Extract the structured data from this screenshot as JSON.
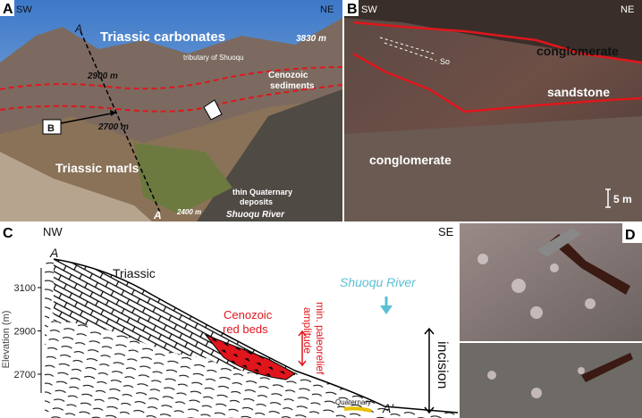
{
  "panel_a": {
    "label": "A",
    "left": "SW",
    "right": "NE",
    "line_top": "A",
    "line_bottom": "A",
    "title": "Triassic carbonates",
    "peak": "3830 m",
    "tributary": "tributary of Shuoqu",
    "cenozoic": [
      "Cenozoic",
      "sediments"
    ],
    "upper_level": "2900 m",
    "lower_level": "2700 m",
    "box": "B",
    "marls": "Triassic marls",
    "quaternary": [
      "thin Quaternary",
      "deposits"
    ],
    "river_level": "2400 m",
    "river": "Shuoqu River"
  },
  "panel_b": {
    "label": "B",
    "left": "SW",
    "right": "NE",
    "bedding": "So",
    "upper": "conglomerate",
    "middle": "sandstone",
    "lower": "conglomerate",
    "scale": "5 m"
  },
  "panel_c": {
    "label": "C",
    "left": "NW",
    "right": "SE",
    "start": "A",
    "end": "A′",
    "triassic": "Triassic",
    "red_beds": [
      "Cenozoic",
      "red beds"
    ],
    "paleorelief": [
      "min. paleorelief",
      "amplitude"
    ],
    "river": "Shuoqu River",
    "incision": "incision",
    "quaternary": "Quaternary",
    "axis_title": "Elevation (m)",
    "yticks": [
      3100,
      2900,
      2700
    ]
  },
  "panel_d": {
    "label": "D"
  }
}
